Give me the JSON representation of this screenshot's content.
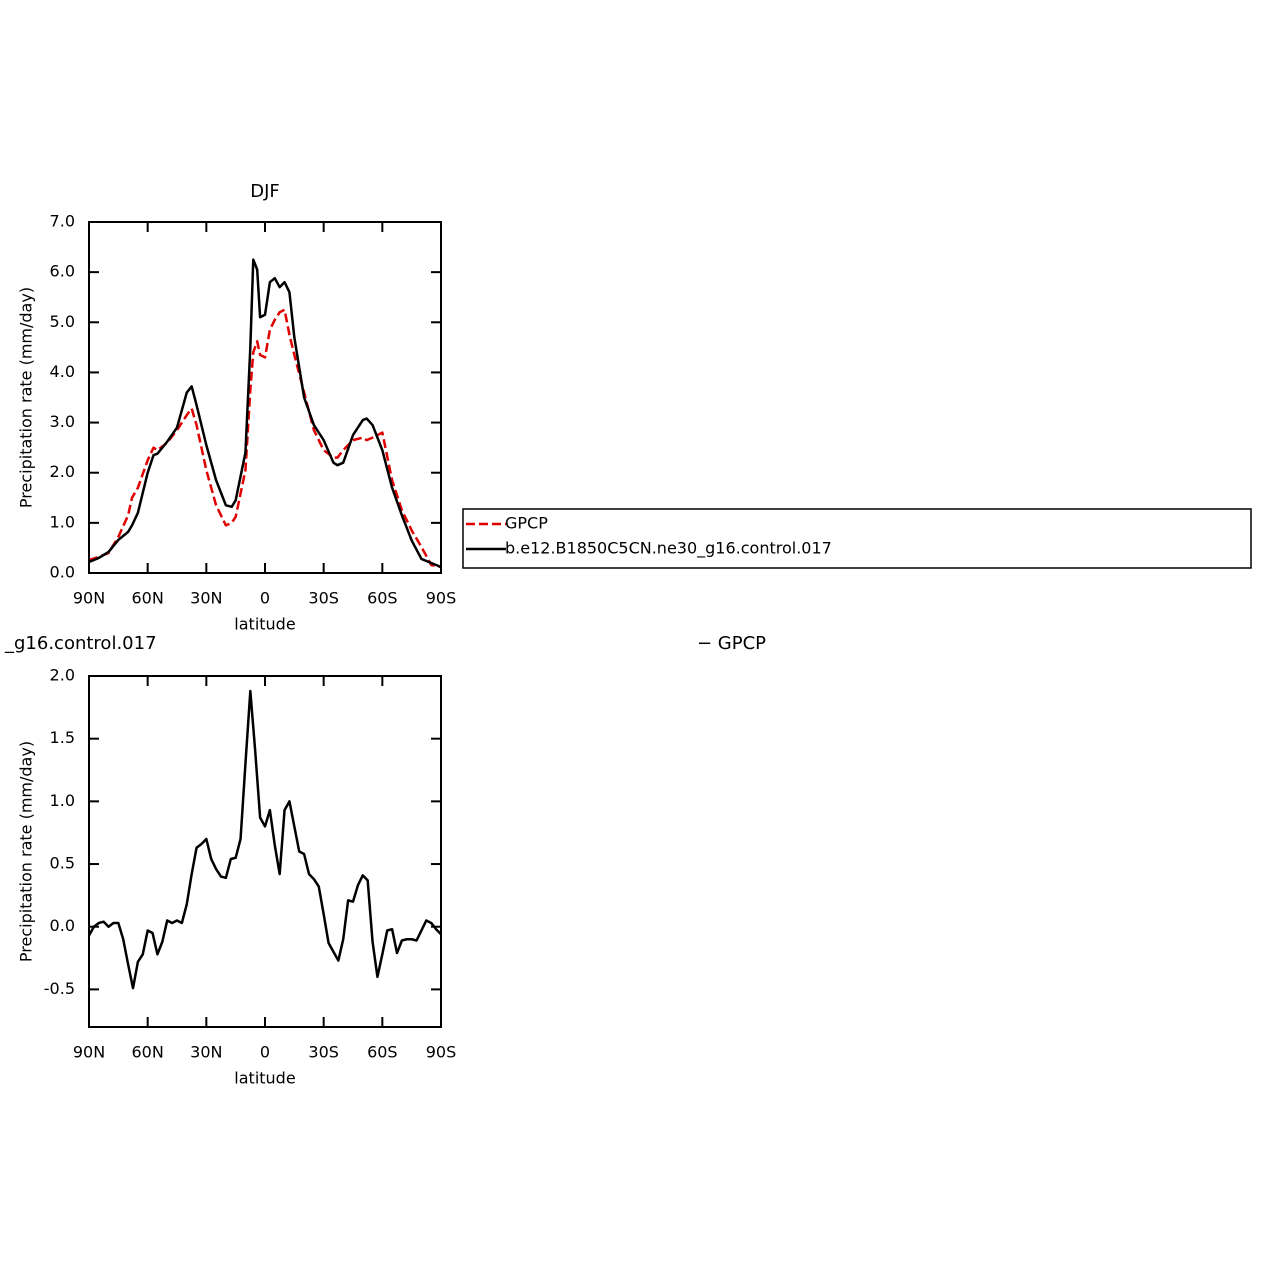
{
  "chart_data": [
    {
      "type": "line",
      "title": "DJF",
      "ylabel": "Precipitation rate (mm/day)",
      "xlabel": "latitude",
      "x": [
        90,
        85,
        80,
        75,
        70,
        68,
        65,
        60,
        57,
        55,
        50,
        45,
        40,
        37.5,
        35,
        30,
        25,
        20,
        17,
        15,
        10,
        7.5,
        6,
        4,
        2.5,
        0,
        -2.5,
        -5,
        -7.5,
        -10,
        -12.5,
        -15,
        -20,
        -25,
        -30,
        -35,
        -37,
        -40,
        -45,
        -50,
        -52,
        -55,
        -60,
        -65,
        -70,
        -75,
        -80,
        -85,
        -90
      ],
      "series": [
        {
          "name": "GPCP",
          "color": "#e00000",
          "dashed": true,
          "values": [
            0.26,
            0.32,
            0.4,
            0.72,
            1.15,
            1.5,
            1.7,
            2.25,
            2.5,
            2.45,
            2.6,
            2.85,
            3.15,
            3.28,
            2.95,
            2.05,
            1.35,
            0.95,
            1.0,
            1.12,
            2.05,
            3.65,
            4.4,
            4.62,
            4.35,
            4.3,
            4.85,
            5.05,
            5.2,
            5.25,
            4.75,
            4.35,
            3.6,
            2.85,
            2.45,
            2.3,
            2.3,
            2.45,
            2.65,
            2.7,
            2.65,
            2.7,
            2.8,
            1.85,
            1.25,
            0.85,
            0.52,
            0.16,
            0.12
          ]
        },
        {
          "name": "b.e12.B1850C5CN.ne30_g16.control.017",
          "color": "#000000",
          "dashed": false,
          "values": [
            0.22,
            0.3,
            0.42,
            0.66,
            0.82,
            0.95,
            1.2,
            2.0,
            2.35,
            2.38,
            2.62,
            2.9,
            3.6,
            3.72,
            3.35,
            2.55,
            1.85,
            1.35,
            1.32,
            1.45,
            2.4,
            4.5,
            6.25,
            6.05,
            5.1,
            5.15,
            5.8,
            5.88,
            5.7,
            5.8,
            5.6,
            4.7,
            3.5,
            2.95,
            2.65,
            2.2,
            2.15,
            2.2,
            2.75,
            3.05,
            3.08,
            2.95,
            2.45,
            1.7,
            1.15,
            0.65,
            0.28,
            0.2,
            0.12
          ]
        }
      ],
      "xlim": [
        90,
        -90
      ],
      "xticks": [
        {
          "value": 90,
          "label": "90N"
        },
        {
          "value": 60,
          "label": "60N"
        },
        {
          "value": 30,
          "label": "30N"
        },
        0,
        {
          "value": -30,
          "label": "30S"
        },
        {
          "value": -60,
          "label": "60S"
        },
        {
          "value": -90,
          "label": "90S"
        }
      ],
      "ylim": [
        0,
        7
      ],
      "yticks": [
        {
          "value": 0,
          "label": "0.0"
        },
        {
          "value": 1,
          "label": "1.0"
        },
        {
          "value": 2,
          "label": "2.0"
        },
        {
          "value": 3,
          "label": "3.0"
        },
        {
          "value": 4,
          "label": "4.0"
        },
        {
          "value": 5,
          "label": "5.0"
        },
        {
          "value": 6,
          "label": "6.0"
        },
        {
          "value": 7,
          "label": "7.0"
        }
      ],
      "legend": "outside-right"
    },
    {
      "type": "line",
      "title_left": "_g16.control.017",
      "title_right": "− GPCP",
      "ylabel": "Precipitation rate (mm/day)",
      "xlabel": "latitude",
      "x": [
        90,
        87.5,
        85,
        82.5,
        80,
        77.5,
        75,
        72.5,
        70,
        67.5,
        65,
        62.5,
        60,
        57.5,
        55,
        52.5,
        50,
        47.5,
        45,
        42.5,
        40,
        37.5,
        35,
        32.5,
        30,
        27.5,
        25,
        22.5,
        20,
        17.5,
        15,
        12.5,
        10,
        7.5,
        5,
        2.5,
        0,
        -2.5,
        -5,
        -7.5,
        -10,
        -12.5,
        -15,
        -17.5,
        -20,
        -22.5,
        -25,
        -27.5,
        -30,
        -32.5,
        -35,
        -37.5,
        -40,
        -42.5,
        -45,
        -47.5,
        -50,
        -52.5,
        -55,
        -57.5,
        -60,
        -62.5,
        -65,
        -67.5,
        -70,
        -72.5,
        -75,
        -77.5,
        -80,
        -82.5,
        -85,
        -87.5,
        -90
      ],
      "series": [
        {
          "color": "#000000",
          "dashed": false,
          "values": [
            -0.07,
            0.0,
            0.03,
            0.04,
            0.0,
            0.03,
            0.03,
            -0.1,
            -0.3,
            -0.49,
            -0.28,
            -0.22,
            -0.03,
            -0.05,
            -0.22,
            -0.12,
            0.05,
            0.03,
            0.05,
            0.03,
            0.18,
            0.42,
            0.63,
            0.66,
            0.7,
            0.54,
            0.46,
            0.4,
            0.39,
            0.54,
            0.55,
            0.7,
            1.3,
            1.88,
            1.4,
            0.87,
            0.8,
            0.93,
            0.65,
            0.42,
            0.93,
            1.0,
            0.8,
            0.6,
            0.58,
            0.42,
            0.38,
            0.32,
            0.1,
            -0.13,
            -0.2,
            -0.27,
            -0.1,
            0.21,
            0.2,
            0.33,
            0.41,
            0.37,
            -0.12,
            -0.4,
            -0.22,
            -0.03,
            -0.02,
            -0.21,
            -0.11,
            -0.1,
            -0.1,
            -0.11,
            -0.03,
            0.05,
            0.03,
            -0.02,
            -0.06
          ]
        }
      ],
      "xlim": [
        90,
        -90
      ],
      "xticks": [
        {
          "value": 90,
          "label": "90N"
        },
        {
          "value": 60,
          "label": "60N"
        },
        {
          "value": 30,
          "label": "30N"
        },
        0,
        {
          "value": -30,
          "label": "30S"
        },
        {
          "value": -60,
          "label": "60S"
        },
        {
          "value": -90,
          "label": "90S"
        }
      ],
      "ylim": [
        -0.8,
        2.0
      ],
      "yticks": [
        {
          "value": -0.5,
          "label": "-0.5"
        },
        {
          "value": 0,
          "label": "0.0"
        },
        0.5,
        {
          "value": 1,
          "label": "1.0"
        },
        1.5,
        {
          "value": 2,
          "label": "2.0"
        }
      ]
    }
  ]
}
